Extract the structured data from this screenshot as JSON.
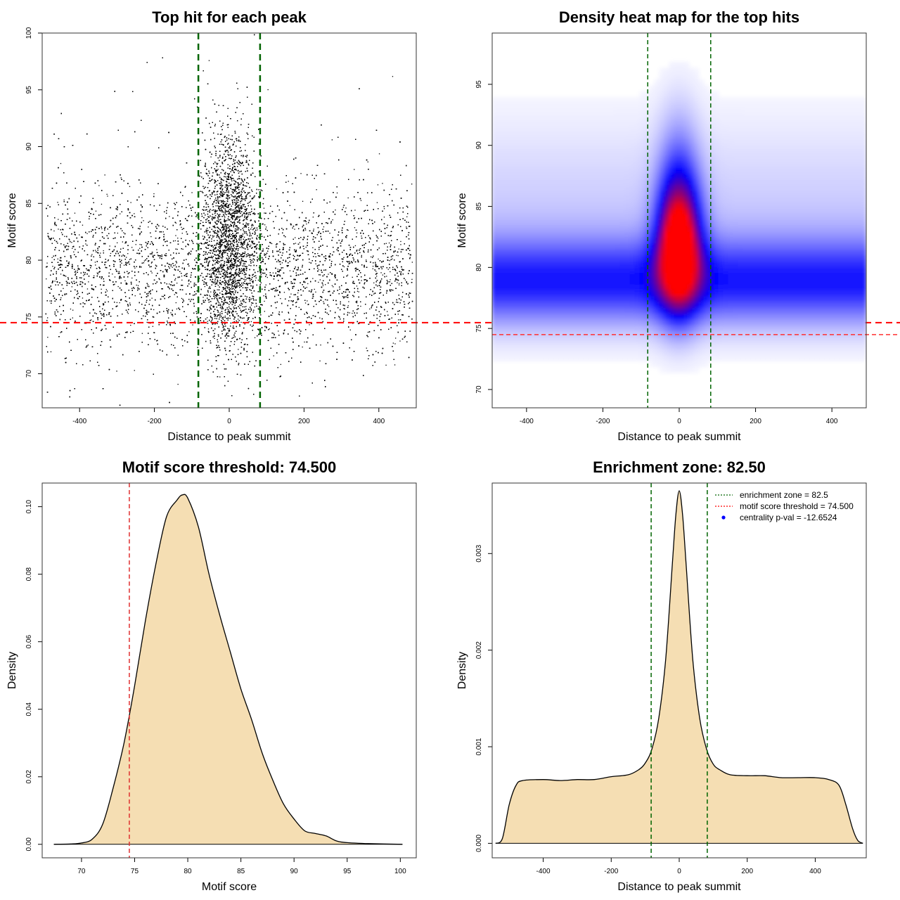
{
  "chart_data": [
    {
      "type": "scatter",
      "title": "Top hit for each peak",
      "xlabel": "Distance to peak summit",
      "ylabel": "Motif score",
      "xlim": [
        -500,
        500
      ],
      "ylim": [
        67,
        100
      ],
      "xticks": [
        -400,
        -200,
        0,
        200,
        400
      ],
      "yticks": [
        70,
        75,
        80,
        85,
        90,
        95,
        100
      ],
      "hlines": [
        74.5
      ],
      "vlines": [
        -82.5,
        82.5
      ],
      "point_color": "#000000",
      "distribution": {
        "x_range": [
          -490,
          490
        ],
        "background_score_mean": 79,
        "background_score_sd": 3.3,
        "central_score_mean": 81,
        "central_score_sd": 4.4,
        "central_x_sd": 35
      }
    },
    {
      "type": "heatmap",
      "title": "Density heat map for the top hits",
      "xlabel": "Distance to peak summit",
      "ylabel": "Motif score",
      "xlim": [
        -490,
        490
      ],
      "ylim": [
        68.5,
        99.2
      ],
      "xticks": [
        -400,
        -200,
        0,
        200,
        400
      ],
      "yticks": [
        70,
        75,
        80,
        85,
        90,
        95
      ],
      "hlines": [
        74.5
      ],
      "vlines": [
        -82.5,
        82.5
      ],
      "colors": [
        "#ffffff",
        "#0000ff",
        "#ff0000"
      ],
      "distribution": {
        "peak_x": 0,
        "peak_score": 81.5,
        "central_x_sd": 38,
        "central_score_sd": 3.4,
        "background_score_mean": 78.8,
        "background_score_sd": 2.4
      }
    },
    {
      "type": "area",
      "title": "Motif score threshold: 74.500",
      "xlabel": "Motif score",
      "ylabel": "Density",
      "xlim": [
        66.3,
        101.5
      ],
      "ylim": [
        -0.004,
        0.107
      ],
      "xticks": [
        70,
        75,
        80,
        85,
        90,
        95,
        100
      ],
      "yticks": [
        0.0,
        0.02,
        0.04,
        0.06,
        0.08,
        0.1
      ],
      "ytick_labels": [
        "0.00",
        "0.02",
        "0.04",
        "0.06",
        "0.08",
        "0.10"
      ],
      "vlines": [
        74.5
      ],
      "fill": "#f5deb3",
      "x": [
        67.4,
        69,
        70,
        71,
        72,
        73,
        74,
        75,
        76,
        77,
        78,
        79,
        79.5,
        80,
        81,
        82,
        83,
        84,
        85,
        86,
        87,
        88,
        89,
        90,
        91,
        92,
        93,
        94,
        95,
        97,
        100.2
      ],
      "y": [
        0,
        0.0001,
        0.0004,
        0.0015,
        0.006,
        0.017,
        0.03,
        0.047,
        0.066,
        0.083,
        0.097,
        0.102,
        0.1035,
        0.1025,
        0.094,
        0.08,
        0.068,
        0.057,
        0.046,
        0.037,
        0.027,
        0.019,
        0.012,
        0.0075,
        0.004,
        0.0032,
        0.0025,
        0.001,
        0.0005,
        0.0002,
        0
      ]
    },
    {
      "type": "area",
      "title": "Enrichment zone: 82.50",
      "xlabel": "Distance to peak summit",
      "ylabel": "Density",
      "xlim": [
        -550,
        550
      ],
      "ylim": [
        -0.00015,
        0.00373
      ],
      "xticks": [
        -400,
        -200,
        0,
        200,
        400
      ],
      "yticks": [
        0.0,
        0.001,
        0.002,
        0.003
      ],
      "ytick_labels": [
        "0.000",
        "0.001",
        "0.002",
        "0.003"
      ],
      "vlines": [
        -82.5,
        82.5
      ],
      "fill": "#f5deb3",
      "x": [
        -540,
        -520,
        -500,
        -480,
        -460,
        -400,
        -350,
        -300,
        -250,
        -200,
        -150,
        -120,
        -100,
        -80,
        -60,
        -40,
        -20,
        -10,
        0,
        10,
        20,
        40,
        60,
        80,
        100,
        120,
        150,
        200,
        250,
        300,
        350,
        400,
        440,
        470,
        490,
        510,
        525,
        540
      ],
      "y": [
        0,
        5e-05,
        0.0004,
        0.0006,
        0.00065,
        0.00066,
        0.00065,
        0.00066,
        0.00066,
        0.00069,
        0.00071,
        0.00076,
        0.00083,
        0.00098,
        0.0013,
        0.0019,
        0.0029,
        0.0034,
        0.00365,
        0.0034,
        0.0029,
        0.0019,
        0.0013,
        0.00098,
        0.00082,
        0.00076,
        0.00071,
        0.0007,
        0.0007,
        0.00068,
        0.00068,
        0.00068,
        0.00066,
        0.0006,
        0.0004,
        0.00015,
        3e-05,
        0
      ],
      "legend": {
        "position": "top-right",
        "items": [
          {
            "label": "enrichment zone = 82.5",
            "color": "#006400",
            "style": "dotted-line"
          },
          {
            "label": "motif score threshold = 74.500",
            "color": "#ff0000",
            "style": "dotted-line"
          },
          {
            "label": "centrality p-val = -12.6524",
            "color": "#0000ff",
            "style": "point"
          }
        ]
      }
    }
  ]
}
